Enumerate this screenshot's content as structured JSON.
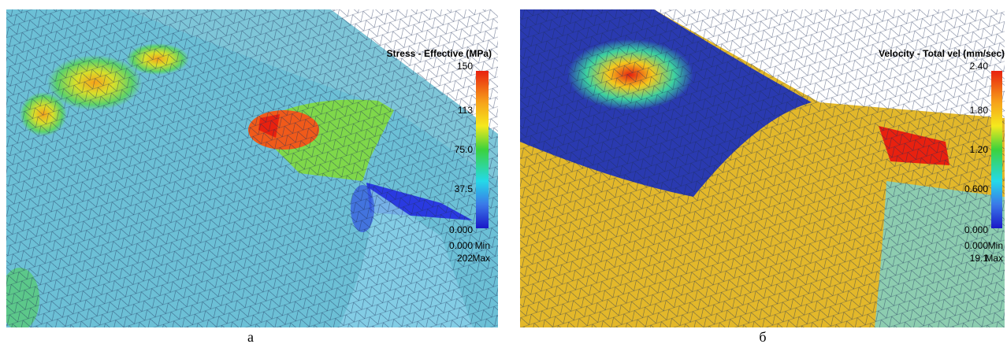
{
  "panels": [
    {
      "legend_title": "Stress - Effective (MPa)",
      "scale_labels": [
        "150",
        "113",
        "75.0",
        "37.5",
        "0.000"
      ],
      "min_value": "0.000",
      "min_label": "Min",
      "max_value": "202",
      "max_label": "Max",
      "caption": "а"
    },
    {
      "legend_title": "Velocity - Total vel (mm/sec)",
      "scale_labels": [
        "2.40",
        "1.80",
        "1.20",
        "0.600",
        "0.000"
      ],
      "min_value": "0.000",
      "min_label": "Min",
      "max_value": "19.1",
      "max_label": "Max",
      "caption": "б"
    }
  ]
}
